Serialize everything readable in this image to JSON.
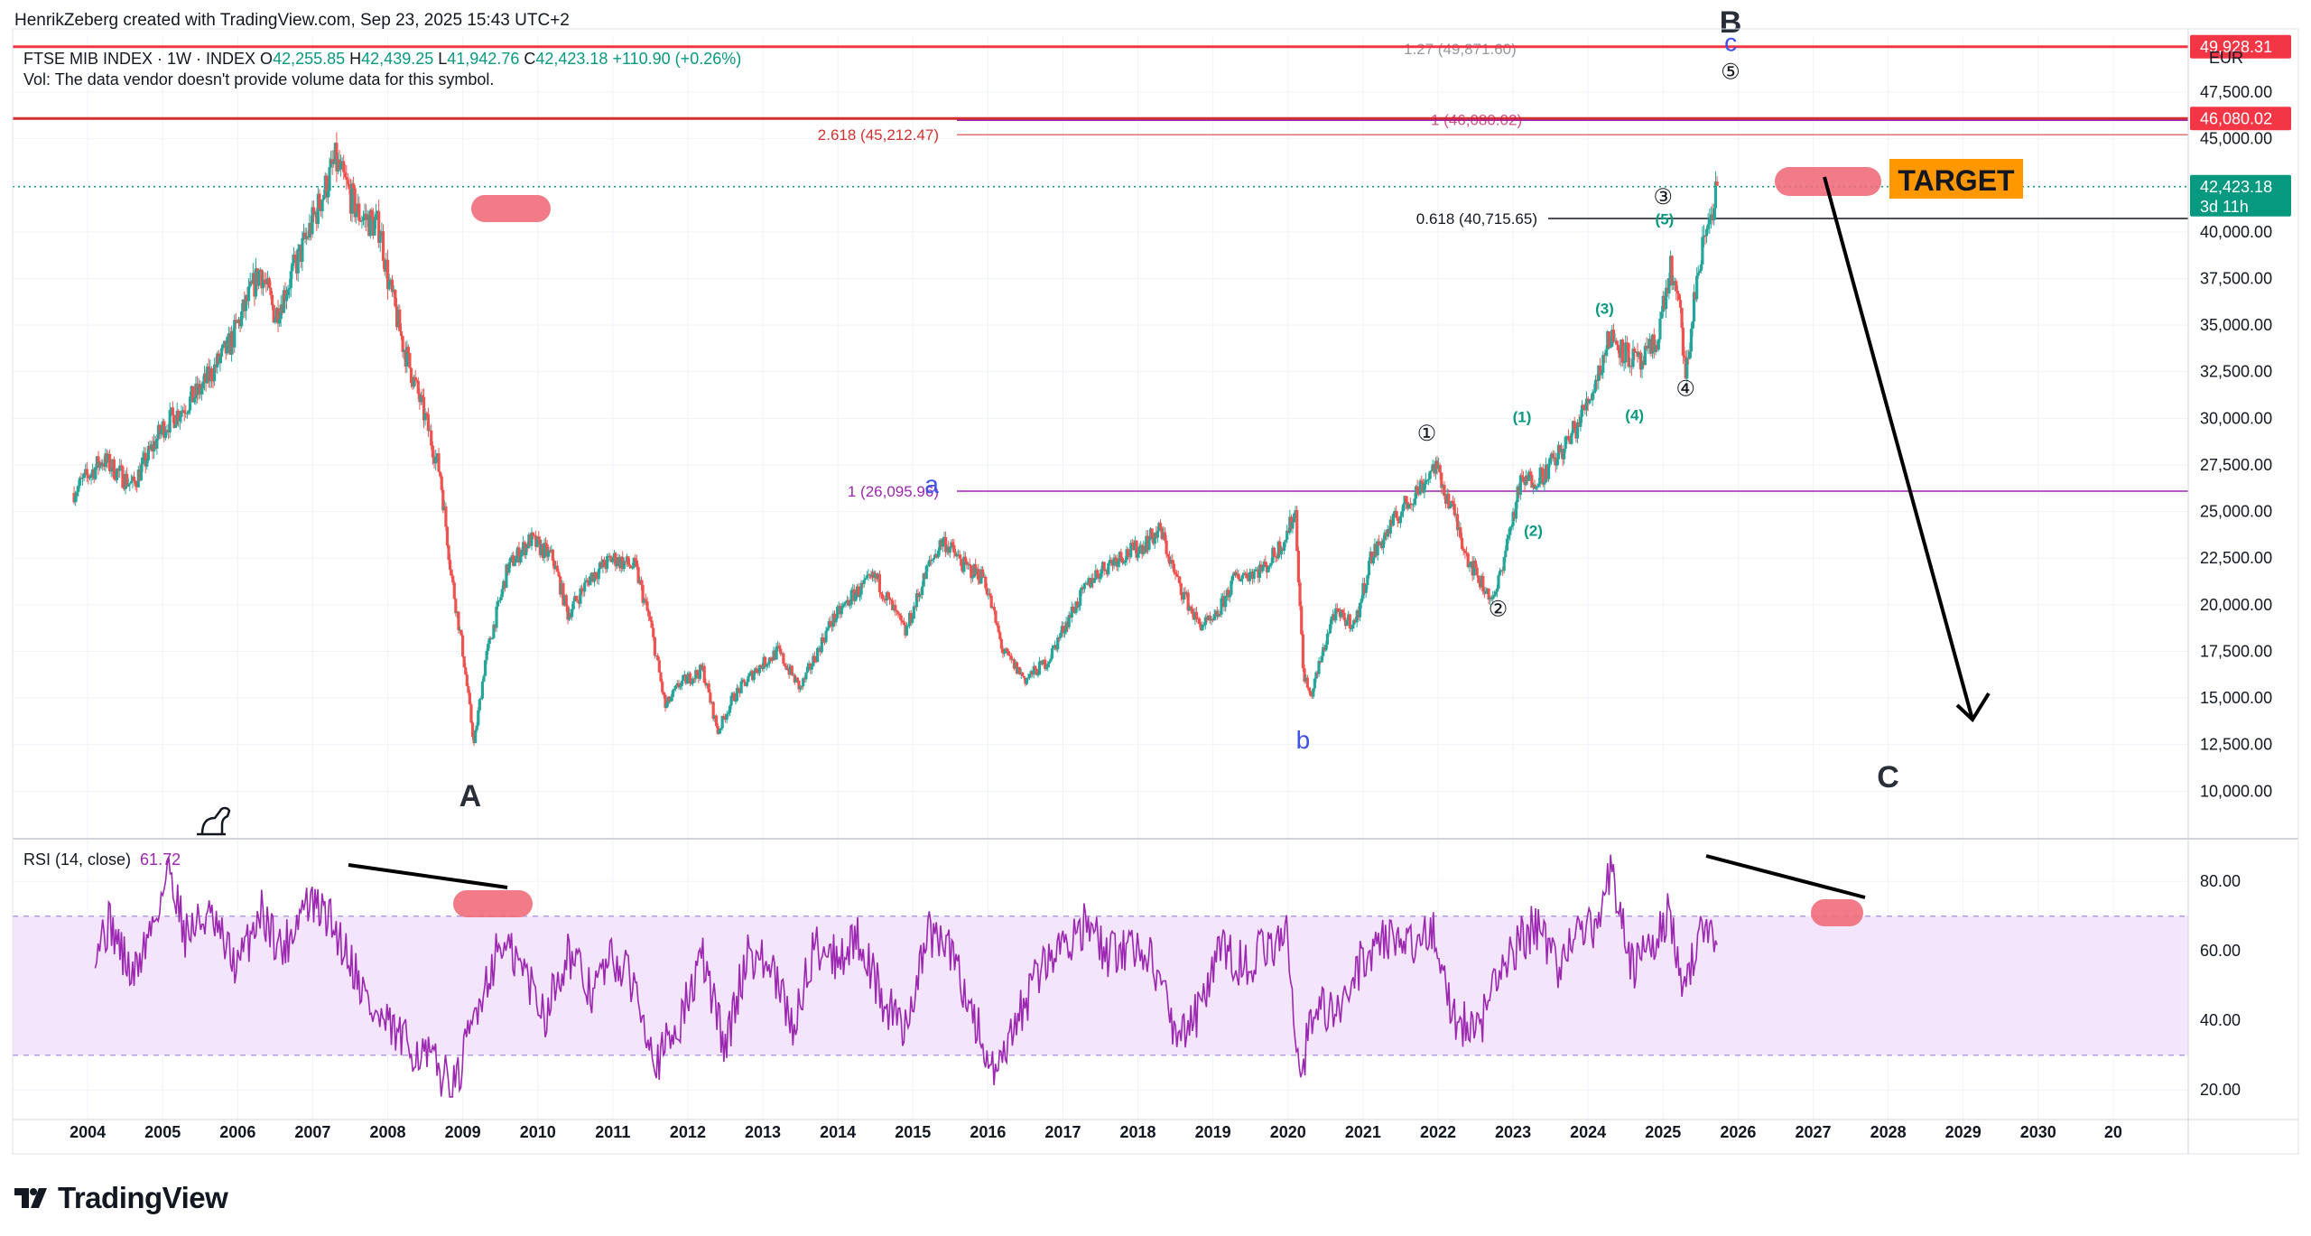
{
  "header": {
    "credit": "HenrikZeberg created with TradingView.com, Sep 23, 2025 15:43 UTC+2",
    "symbol": "FTSE MIB INDEX · 1W · INDEX",
    "o_label": "O",
    "open": "42,255.85",
    "h_label": "H",
    "high": "42,439.25",
    "l_label": "L",
    "low": "41,942.76",
    "c_label": "C",
    "close": "42,423.18",
    "change": "+110.90 (+0.26%)",
    "volume_note": "Vol: The data vendor doesn't provide volume data for this symbol.",
    "currency": "EUR"
  },
  "rsi": {
    "label": "RSI (14, close)",
    "value": "61.72",
    "color": "#9c27b0",
    "band_fill": "#f3e5fc"
  },
  "brand": {
    "name": "TradingView"
  },
  "colors": {
    "up": "#26a69a",
    "down": "#ef5350",
    "accent": "#089981",
    "red_line": "#f23645",
    "fib": "#9c27b0",
    "target_bg": "#ff9800"
  },
  "chart_data": [
    {
      "type": "candlestick",
      "title": "FTSE MIB INDEX · 1W · INDEX",
      "x_ticks": [
        "2004",
        "2005",
        "2006",
        "2007",
        "2008",
        "2009",
        "2010",
        "2011",
        "2012",
        "2013",
        "2014",
        "2015",
        "2016",
        "2017",
        "2018",
        "2019",
        "2020",
        "2021",
        "2022",
        "2023",
        "2024",
        "2025",
        "2026",
        "2027",
        "2028",
        "2029",
        "2030",
        "20"
      ],
      "y_ticks": [
        "47,500.00",
        "45,000.00",
        "42,500.00",
        "40,000.00",
        "37,500.00",
        "35,000.00",
        "32,500.00",
        "30,000.00",
        "27,500.00",
        "25,000.00",
        "22,500.00",
        "20,000.00",
        "17,500.00",
        "15,000.00",
        "12,500.00",
        "10,000.00"
      ],
      "ylim": [
        7500,
        50500
      ],
      "scale": "linear",
      "grid": true,
      "price_path": [
        [
          2003.8,
          26000
        ],
        [
          2004.2,
          27800
        ],
        [
          2004.6,
          26400
        ],
        [
          2005.0,
          29500
        ],
        [
          2005.5,
          31500
        ],
        [
          2005.9,
          34000
        ],
        [
          2006.3,
          38000
        ],
        [
          2006.5,
          35500
        ],
        [
          2006.9,
          39500
        ],
        [
          2007.3,
          43800
        ],
        [
          2007.6,
          41000
        ],
        [
          2007.9,
          40200
        ],
        [
          2008.0,
          37500
        ],
        [
          2008.2,
          34000
        ],
        [
          2008.5,
          30000
        ],
        [
          2008.7,
          27000
        ],
        [
          2008.85,
          21500
        ],
        [
          2009.0,
          17500
        ],
        [
          2009.15,
          12500
        ],
        [
          2009.3,
          17000
        ],
        [
          2009.6,
          22000
        ],
        [
          2009.9,
          23500
        ],
        [
          2010.2,
          22500
        ],
        [
          2010.4,
          19500
        ],
        [
          2010.7,
          21500
        ],
        [
          2011.0,
          22500
        ],
        [
          2011.3,
          22000
        ],
        [
          2011.5,
          19000
        ],
        [
          2011.7,
          14500
        ],
        [
          2011.9,
          15800
        ],
        [
          2012.2,
          16500
        ],
        [
          2012.4,
          13200
        ],
        [
          2012.6,
          15000
        ],
        [
          2012.9,
          16500
        ],
        [
          2013.2,
          17500
        ],
        [
          2013.5,
          15500
        ],
        [
          2013.9,
          19000
        ],
        [
          2014.2,
          20500
        ],
        [
          2014.5,
          21500
        ],
        [
          2014.9,
          18500
        ],
        [
          2015.2,
          22000
        ],
        [
          2015.4,
          23500
        ],
        [
          2015.7,
          22000
        ],
        [
          2015.95,
          21500
        ],
        [
          2016.2,
          17500
        ],
        [
          2016.5,
          16000
        ],
        [
          2016.8,
          17000
        ],
        [
          2017.1,
          19500
        ],
        [
          2017.4,
          21500
        ],
        [
          2017.7,
          22500
        ],
        [
          2018.0,
          23000
        ],
        [
          2018.3,
          24000
        ],
        [
          2018.5,
          21500
        ],
        [
          2018.8,
          19000
        ],
        [
          2019.0,
          19000
        ],
        [
          2019.3,
          21500
        ],
        [
          2019.7,
          22000
        ],
        [
          2019.95,
          23500
        ],
        [
          2020.1,
          25000
        ],
        [
          2020.2,
          16500
        ],
        [
          2020.3,
          15000
        ],
        [
          2020.6,
          19500
        ],
        [
          2020.9,
          19000
        ],
        [
          2021.1,
          22500
        ],
        [
          2021.5,
          25000
        ],
        [
          2021.8,
          26500
        ],
        [
          2021.95,
          27500
        ],
        [
          2022.2,
          25000
        ],
        [
          2022.4,
          22500
        ],
        [
          2022.6,
          21000
        ],
        [
          2022.75,
          20200
        ],
        [
          2022.9,
          23000
        ],
        [
          2023.1,
          26500
        ],
        [
          2023.4,
          27000
        ],
        [
          2023.7,
          28500
        ],
        [
          2023.9,
          30000
        ],
        [
          2024.1,
          32000
        ],
        [
          2024.3,
          34500
        ],
        [
          2024.5,
          33500
        ],
        [
          2024.7,
          32800
        ],
        [
          2024.9,
          34000
        ],
        [
          2025.1,
          38000
        ],
        [
          2025.25,
          35000
        ],
        [
          2025.3,
          32000
        ],
        [
          2025.45,
          37500
        ],
        [
          2025.6,
          40500
        ],
        [
          2025.72,
          42423
        ]
      ],
      "levels": [
        {
          "label": "1.27 (49,871.60)",
          "value": 49871.6
        },
        {
          "label": "1 (46,080.02)",
          "value": 46080.02
        },
        {
          "label": "2.618 (45,212.47)",
          "value": 45212.47
        },
        {
          "label": "0.618 (40,715.65)",
          "value": 40715.65
        },
        {
          "label": "1 (26,095.96)",
          "value": 26095.96
        }
      ],
      "price_badges": [
        {
          "label": "49,928.31",
          "value": 49928.31
        },
        {
          "label": "46,080.02",
          "value": 46080.02
        },
        {
          "label": "42,423.18",
          "value": 42423.18,
          "sub": "3d 11h"
        }
      ],
      "annotations": [
        {
          "text": "A",
          "x": 2009.1,
          "y": 9200
        },
        {
          "text": "B",
          "x": 2025.9,
          "y": 50700
        },
        {
          "text": "C",
          "x": 2028.0,
          "y": 10200
        },
        {
          "text": "a",
          "x": 2015.25,
          "y": 26000
        },
        {
          "text": "b",
          "x": 2020.2,
          "y": 12300
        },
        {
          "text": "c",
          "x": 2025.9,
          "y": 49700
        },
        {
          "text": "①",
          "x": 2021.85,
          "y": 28800
        },
        {
          "text": "②",
          "x": 2022.8,
          "y": 19400
        },
        {
          "text": "③",
          "x": 2025.0,
          "y": 41500
        },
        {
          "text": "④",
          "x": 2025.3,
          "y": 31200
        },
        {
          "text": "⑤",
          "x": 2025.9,
          "y": 48200
        },
        {
          "text": "(1)",
          "x": 2023.12,
          "y": 29800
        },
        {
          "text": "(2)",
          "x": 2023.27,
          "y": 23700
        },
        {
          "text": "(3)",
          "x": 2024.22,
          "y": 35600
        },
        {
          "text": "(4)",
          "x": 2024.62,
          "y": 29900
        },
        {
          "text": "(5)",
          "x": 2025.02,
          "y": 40400
        }
      ],
      "target_label": "TARGET"
    },
    {
      "type": "line",
      "title": "RSI (14, close)",
      "last_value": 61.72,
      "y_ticks": [
        "80.00",
        "60.00",
        "40.00",
        "20.00"
      ],
      "ylim": [
        12,
        92
      ],
      "band": [
        30,
        70
      ],
      "path": [
        [
          2004.1,
          62
        ],
        [
          2004.3,
          68
        ],
        [
          2004.6,
          52
        ],
        [
          2004.9,
          70
        ],
        [
          2005.1,
          84
        ],
        [
          2005.3,
          65
        ],
        [
          2005.6,
          70
        ],
        [
          2006.0,
          55
        ],
        [
          2006.3,
          72
        ],
        [
          2006.6,
          60
        ],
        [
          2006.9,
          74
        ],
        [
          2007.2,
          70
        ],
        [
          2007.5,
          58
        ],
        [
          2007.8,
          42
        ],
        [
          2008.2,
          34
        ],
        [
          2008.6,
          28
        ],
        [
          2008.9,
          20
        ],
        [
          2009.2,
          45
        ],
        [
          2009.5,
          62
        ],
        [
          2009.8,
          55
        ],
        [
          2010.1,
          42
        ],
        [
          2010.4,
          60
        ],
        [
          2010.7,
          48
        ],
        [
          2011.0,
          58
        ],
        [
          2011.3,
          50
        ],
        [
          2011.6,
          28
        ],
        [
          2011.9,
          40
        ],
        [
          2012.2,
          58
        ],
        [
          2012.5,
          32
        ],
        [
          2012.8,
          60
        ],
        [
          2013.1,
          55
        ],
        [
          2013.4,
          38
        ],
        [
          2013.7,
          62
        ],
        [
          2014.0,
          58
        ],
        [
          2014.3,
          64
        ],
        [
          2014.6,
          45
        ],
        [
          2014.9,
          38
        ],
        [
          2015.2,
          65
        ],
        [
          2015.5,
          60
        ],
        [
          2015.8,
          42
        ],
        [
          2016.1,
          22
        ],
        [
          2016.4,
          40
        ],
        [
          2016.7,
          55
        ],
        [
          2017.0,
          62
        ],
        [
          2017.3,
          68
        ],
        [
          2017.6,
          58
        ],
        [
          2017.9,
          62
        ],
        [
          2018.2,
          58
        ],
        [
          2018.5,
          36
        ],
        [
          2018.8,
          42
        ],
        [
          2019.1,
          60
        ],
        [
          2019.4,
          56
        ],
        [
          2019.7,
          60
        ],
        [
          2020.0,
          64
        ],
        [
          2020.15,
          25
        ],
        [
          2020.4,
          45
        ],
        [
          2020.7,
          42
        ],
        [
          2021.0,
          58
        ],
        [
          2021.3,
          65
        ],
        [
          2021.6,
          60
        ],
        [
          2021.9,
          68
        ],
        [
          2022.2,
          42
        ],
        [
          2022.5,
          35
        ],
        [
          2022.8,
          52
        ],
        [
          2023.0,
          60
        ],
        [
          2023.3,
          68
        ],
        [
          2023.6,
          56
        ],
        [
          2023.9,
          65
        ],
        [
          2024.2,
          70
        ],
        [
          2024.3,
          84
        ],
        [
          2024.6,
          55
        ],
        [
          2024.9,
          62
        ],
        [
          2025.1,
          72
        ],
        [
          2025.25,
          45
        ],
        [
          2025.5,
          68
        ],
        [
          2025.72,
          61.72
        ]
      ]
    }
  ]
}
